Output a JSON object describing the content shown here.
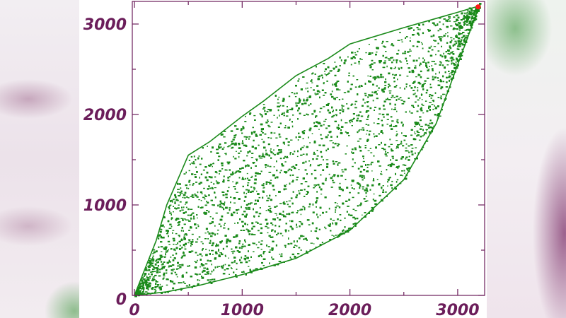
{
  "colors": {
    "axis": "#6b1d5a",
    "points": "#1a8a1a",
    "endpoint": "#ff1a1a",
    "panel": "#ffffff"
  },
  "chart_data": {
    "type": "scatter",
    "title": "",
    "xlabel": "",
    "ylabel": "",
    "xlim": [
      0,
      3250
    ],
    "ylim": [
      0,
      3250
    ],
    "xticks": [
      0,
      1000,
      2000,
      3000
    ],
    "yticks": [
      0,
      1000,
      2000,
      3000
    ],
    "xtick_labels": [
      "0",
      "1000",
      "2000",
      "3000"
    ],
    "ytick_labels": [
      "0",
      "1000",
      "2000",
      "3000"
    ],
    "grid": false,
    "series": [
      {
        "color": "#1a8a1a",
        "upper_envelope": [
          [
            0,
            0
          ],
          [
            200,
            600
          ],
          [
            300,
            1000
          ],
          [
            500,
            1550
          ],
          [
            700,
            1700
          ],
          [
            1000,
            1980
          ],
          [
            1200,
            2150
          ],
          [
            1500,
            2430
          ],
          [
            1800,
            2620
          ],
          [
            2000,
            2780
          ],
          [
            2500,
            2960
          ],
          [
            3000,
            3130
          ],
          [
            3200,
            3200
          ]
        ],
        "lower_envelope": [
          [
            0,
            0
          ],
          [
            300,
            40
          ],
          [
            600,
            110
          ],
          [
            1000,
            230
          ],
          [
            1500,
            410
          ],
          [
            2000,
            720
          ],
          [
            2500,
            1280
          ],
          [
            2800,
            1900
          ],
          [
            3000,
            2550
          ],
          [
            3200,
            3200
          ]
        ],
        "approx_point_count": 6000
      }
    ],
    "highlight_point": {
      "x": 3190,
      "y": 3190,
      "color": "#ff1a1a"
    }
  }
}
